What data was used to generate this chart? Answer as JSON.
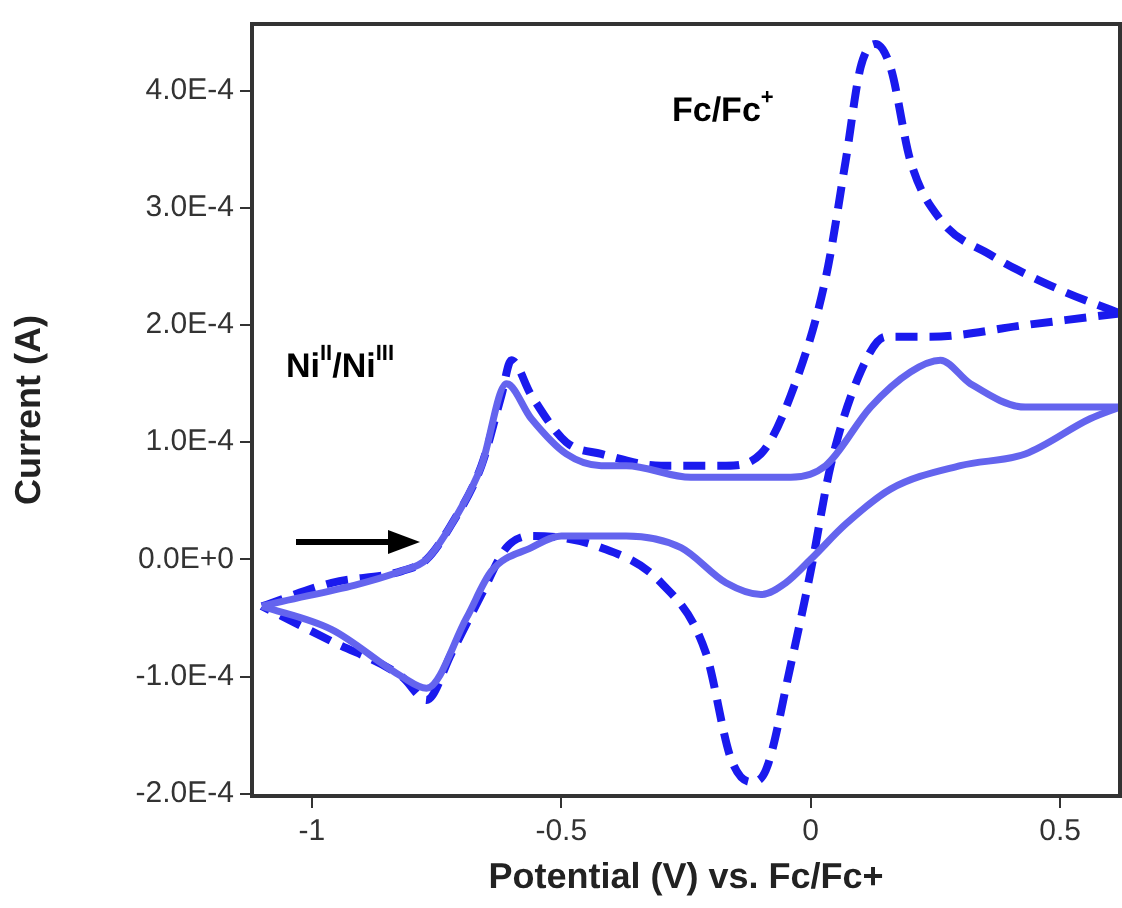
{
  "chart_data": {
    "type": "line",
    "xlabel": "Potential (V) vs. Fc/Fc+",
    "ylabel": "Current (A)",
    "xlim": [
      -1.12,
      0.62
    ],
    "xticks": [
      -1,
      -0.5,
      0,
      0.5
    ],
    "ylim": [
      -0.000202,
      0.000457
    ],
    "yticks": [
      {
        "value": -0.0002,
        "label": "-2.0E-4"
      },
      {
        "value": -0.0001,
        "label": "-1.0E-4"
      },
      {
        "value": 0,
        "label": "0.0E+0"
      },
      {
        "value": 0.0001,
        "label": "1.0E-4"
      },
      {
        "value": 0.0002,
        "label": "2.0E-4"
      },
      {
        "value": 0.0003,
        "label": "3.0E-4"
      },
      {
        "value": 0.0004,
        "label": "4.0E-4"
      }
    ],
    "grid": false,
    "legend": false,
    "marker": "none",
    "annotations": [
      "Ni$^{II}$/Ni$^{III}$",
      "Fc/Fc$^{+}$"
    ],
    "series": [
      {
        "color": "#6464ee",
        "line_style": "solid",
        "x": [
          -1.1,
          -0.82,
          -0.77,
          -0.72,
          -0.66,
          -0.61,
          -0.56,
          -0.49,
          -0.42,
          -0.37,
          -0.24,
          -0.04,
          0.03,
          0.12,
          0.2,
          0.26,
          0.32,
          0.43,
          0.56,
          0.62
        ],
        "values": [
          -4e-05,
          -1e-05,
          0.0,
          3e-05,
          8e-05,
          0.00015,
          0.00012,
          9e-05,
          8e-05,
          8e-05,
          7e-05,
          7e-05,
          8e-05,
          0.00013,
          0.00016,
          0.00017,
          0.00015,
          0.00013,
          0.00013,
          0.00013
        ]
      },
      {
        "color": "#6464ee",
        "line_style": "solid",
        "x": [
          0.62,
          0.56,
          0.43,
          0.3,
          0.16,
          0.07,
          0.0,
          -0.05,
          -0.1,
          -0.17,
          -0.26,
          -0.37,
          -0.5,
          -0.56,
          -0.64,
          -0.69,
          -0.77,
          -0.82,
          -0.96,
          -1.1
        ],
        "values": [
          0.00013,
          0.00012,
          9e-05,
          8e-05,
          6e-05,
          3e-05,
          0.0,
          -2e-05,
          -3e-05,
          -2e-05,
          1e-05,
          2e-05,
          2e-05,
          1e-05,
          -1e-05,
          -5e-05,
          -0.00011,
          -0.0001,
          -6e-05,
          -4e-05
        ]
      },
      {
        "color": "#1a1aee",
        "line_style": "dashed",
        "x": [
          -1.1,
          -0.96,
          -0.82,
          -0.77,
          -0.72,
          -0.66,
          -0.62,
          -0.6,
          -0.56,
          -0.49,
          -0.42,
          -0.3,
          -0.17,
          -0.1,
          -0.04,
          0.03,
          0.07,
          0.1,
          0.13,
          0.16,
          0.2,
          0.26,
          0.36,
          0.5,
          0.62
        ],
        "values": [
          -4e-05,
          -2e-05,
          -1e-05,
          0.0,
          3e-05,
          8e-05,
          0.00014,
          0.00017,
          0.00014,
          0.0001,
          9e-05,
          8e-05,
          8e-05,
          9e-05,
          0.00014,
          0.00024,
          0.00034,
          0.00042,
          0.00044,
          0.00042,
          0.00034,
          0.00029,
          0.00026,
          0.00023,
          0.00021
        ]
      },
      {
        "color": "#1a1aee",
        "line_style": "dashed",
        "x": [
          0.62,
          0.43,
          0.24,
          0.15,
          0.1,
          0.04,
          0.0,
          -0.04,
          -0.09,
          -0.12,
          -0.16,
          -0.21,
          -0.3,
          -0.42,
          -0.56,
          -0.61,
          -0.66,
          -0.72,
          -0.77,
          -0.82,
          -0.96,
          -1.1
        ],
        "values": [
          0.00021,
          0.0002,
          0.00019,
          0.00019,
          0.00016,
          8e-05,
          -1e-05,
          -9e-05,
          -0.00018,
          -0.00019,
          -0.00017,
          -8e-05,
          -2e-05,
          1e-05,
          2e-05,
          1e-05,
          -3e-05,
          -8e-05,
          -0.00012,
          -0.0001,
          -7e-05,
          -4e-05
        ]
      }
    ]
  }
}
